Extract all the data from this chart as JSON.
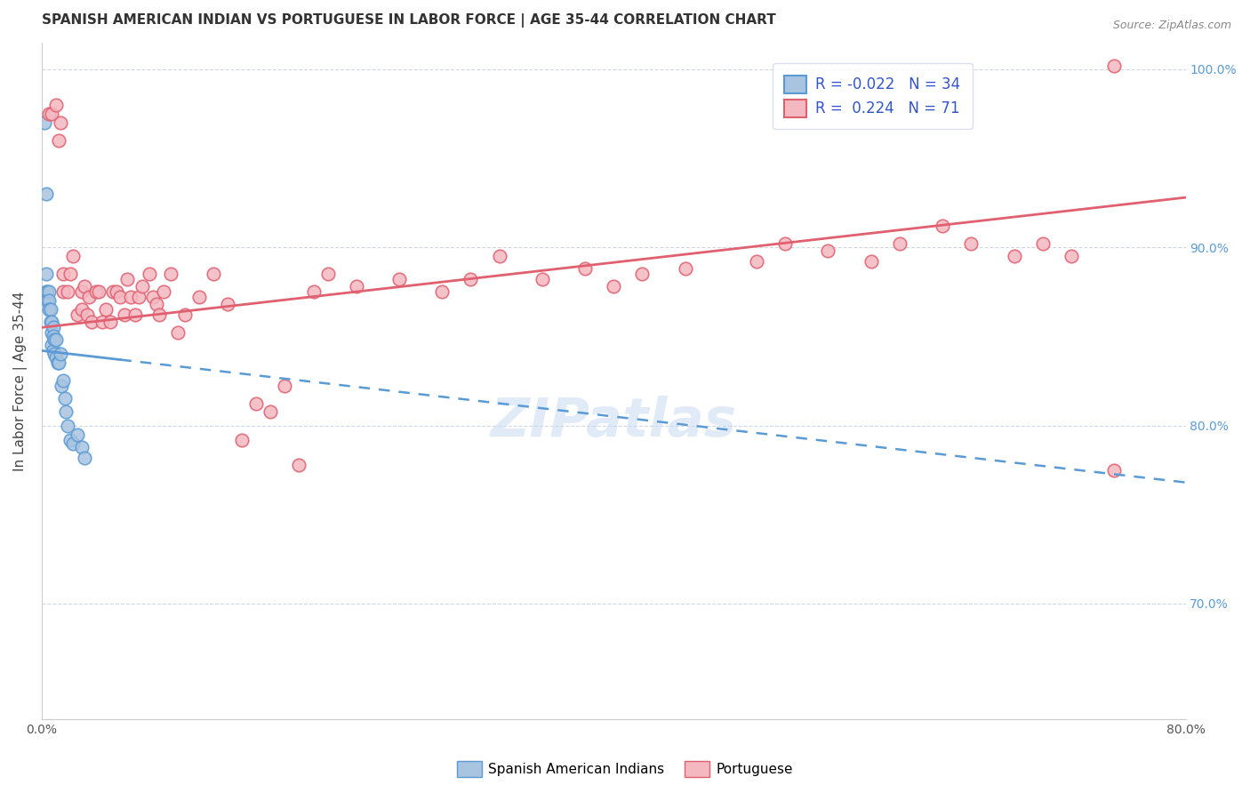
{
  "title": "SPANISH AMERICAN INDIAN VS PORTUGUESE IN LABOR FORCE | AGE 35-44 CORRELATION CHART",
  "source": "Source: ZipAtlas.com",
  "xlabel": "",
  "ylabel": "In Labor Force | Age 35-44",
  "xlim": [
    0.0,
    0.8
  ],
  "ylim": [
    0.635,
    1.015
  ],
  "xticks": [
    0.0,
    0.1,
    0.2,
    0.3,
    0.4,
    0.5,
    0.6,
    0.7,
    0.8
  ],
  "xticklabels": [
    "0.0%",
    "",
    "",
    "",
    "",
    "",
    "",
    "",
    "80.0%"
  ],
  "yticks_right": [
    0.7,
    0.8,
    0.9,
    1.0
  ],
  "yticklabels_right": [
    "70.0%",
    "80.0%",
    "90.0%",
    "100.0%"
  ],
  "blue_color": "#a8c4e0",
  "blue_line_color": "#5b9bd5",
  "pink_color": "#f4b8c1",
  "pink_line_color": "#e06070",
  "legend_box_color": "#f0f4fa",
  "legend_border_color": "#d0d8e8",
  "blue_R": -0.022,
  "blue_N": 34,
  "pink_R": 0.224,
  "pink_N": 71,
  "watermark": "ZIPatlas",
  "blue_scatter_x": [
    0.002,
    0.003,
    0.003,
    0.003,
    0.004,
    0.004,
    0.005,
    0.005,
    0.005,
    0.006,
    0.006,
    0.007,
    0.007,
    0.007,
    0.008,
    0.008,
    0.008,
    0.009,
    0.009,
    0.01,
    0.01,
    0.011,
    0.012,
    0.013,
    0.014,
    0.015,
    0.016,
    0.017,
    0.018,
    0.02,
    0.022,
    0.025,
    0.028,
    0.03
  ],
  "blue_scatter_y": [
    0.97,
    0.885,
    0.93,
    0.875,
    0.875,
    0.87,
    0.875,
    0.87,
    0.865,
    0.865,
    0.858,
    0.858,
    0.852,
    0.845,
    0.855,
    0.85,
    0.842,
    0.848,
    0.84,
    0.848,
    0.838,
    0.835,
    0.835,
    0.84,
    0.822,
    0.825,
    0.815,
    0.808,
    0.8,
    0.792,
    0.79,
    0.795,
    0.788,
    0.782
  ],
  "blue_line_x0": 0.0,
  "blue_line_x1": 0.8,
  "blue_line_y0": 0.842,
  "blue_line_y1": 0.768,
  "pink_line_x0": 0.0,
  "pink_line_x1": 0.8,
  "pink_line_y0": 0.855,
  "pink_line_y1": 0.928,
  "pink_scatter_x": [
    0.005,
    0.007,
    0.01,
    0.012,
    0.013,
    0.015,
    0.015,
    0.018,
    0.02,
    0.022,
    0.025,
    0.028,
    0.028,
    0.03,
    0.032,
    0.033,
    0.035,
    0.038,
    0.04,
    0.042,
    0.045,
    0.048,
    0.05,
    0.052,
    0.055,
    0.058,
    0.06,
    0.062,
    0.065,
    0.068,
    0.07,
    0.075,
    0.078,
    0.08,
    0.082,
    0.085,
    0.09,
    0.095,
    0.1,
    0.11,
    0.12,
    0.13,
    0.14,
    0.15,
    0.16,
    0.17,
    0.18,
    0.19,
    0.2,
    0.22,
    0.25,
    0.28,
    0.3,
    0.32,
    0.35,
    0.38,
    0.4,
    0.42,
    0.45,
    0.5,
    0.52,
    0.55,
    0.58,
    0.6,
    0.63,
    0.65,
    0.68,
    0.7,
    0.72,
    0.75,
    0.75
  ],
  "pink_scatter_y": [
    0.975,
    0.975,
    0.98,
    0.96,
    0.97,
    0.875,
    0.885,
    0.875,
    0.885,
    0.895,
    0.862,
    0.875,
    0.865,
    0.878,
    0.862,
    0.872,
    0.858,
    0.875,
    0.875,
    0.858,
    0.865,
    0.858,
    0.875,
    0.875,
    0.872,
    0.862,
    0.882,
    0.872,
    0.862,
    0.872,
    0.878,
    0.885,
    0.872,
    0.868,
    0.862,
    0.875,
    0.885,
    0.852,
    0.862,
    0.872,
    0.885,
    0.868,
    0.792,
    0.812,
    0.808,
    0.822,
    0.778,
    0.875,
    0.885,
    0.878,
    0.882,
    0.875,
    0.882,
    0.895,
    0.882,
    0.888,
    0.878,
    0.885,
    0.888,
    0.892,
    0.902,
    0.898,
    0.892,
    0.902,
    0.912,
    0.902,
    0.895,
    0.902,
    0.895,
    1.002,
    0.775
  ],
  "title_fontsize": 11,
  "source_fontsize": 9,
  "tick_fontsize": 10,
  "legend_fontsize": 12,
  "ylabel_fontsize": 11
}
